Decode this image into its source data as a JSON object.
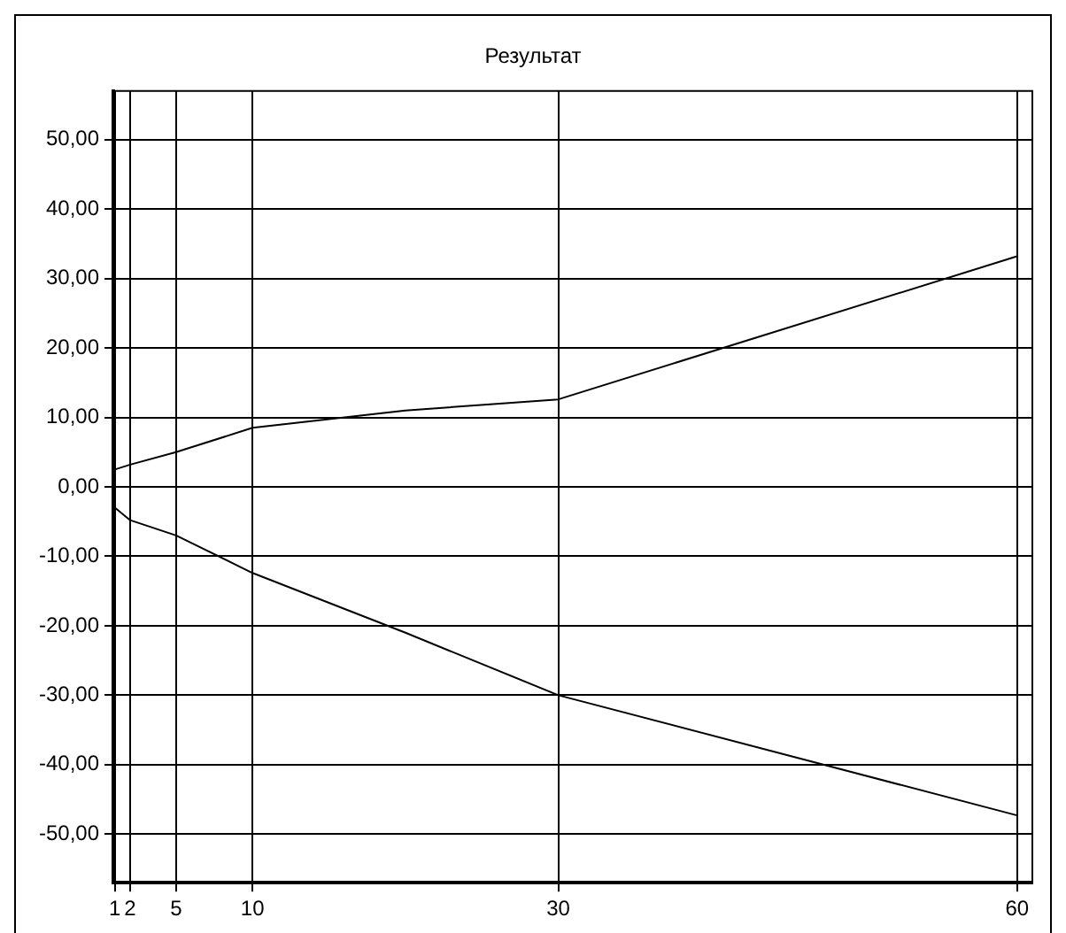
{
  "chart_data": {
    "type": "line",
    "title": "Результат",
    "series": [
      {
        "color": "#000000",
        "x": [
          1,
          2,
          5,
          10,
          20,
          30,
          60
        ],
        "values": [
          2.5,
          3.2,
          5,
          8.5,
          11,
          12.6,
          33.2
        ]
      },
      {
        "color": "#000000",
        "x": [
          1,
          2,
          5,
          10,
          20,
          30,
          60
        ],
        "values": [
          -3,
          -4.8,
          -7,
          -12.4,
          -21,
          -30,
          -47.3
        ]
      }
    ],
    "xlim": [
      0.9,
      61
    ],
    "xticks": [
      1,
      2,
      5,
      10,
      30,
      60
    ],
    "ylim": [
      -57,
      57
    ],
    "yticks": [
      {
        "value": -50,
        "label": "-50,00"
      },
      {
        "value": -40,
        "label": "-40,00"
      },
      {
        "value": -30,
        "label": "-30,00"
      },
      {
        "value": -20,
        "label": "-20,00"
      },
      {
        "value": -10,
        "label": "-10,00"
      },
      {
        "value": 0,
        "label": "0,00"
      },
      {
        "value": 10,
        "label": "10,00"
      },
      {
        "value": 20,
        "label": "20,00"
      },
      {
        "value": 30,
        "label": "30,00"
      },
      {
        "value": 40,
        "label": "40,00"
      },
      {
        "value": 50,
        "label": "50,00"
      }
    ],
    "grid": true,
    "legend": false,
    "marker": "none",
    "line_style": "solid"
  }
}
